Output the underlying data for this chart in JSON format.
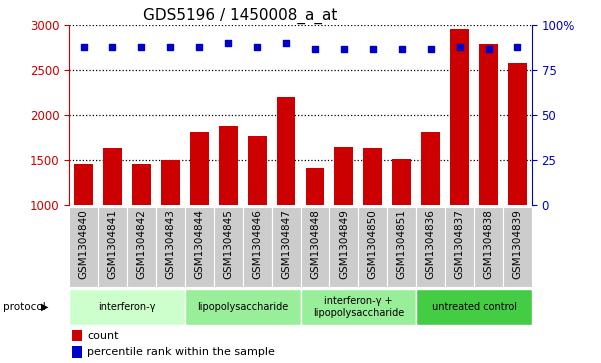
{
  "title": "GDS5196 / 1450008_a_at",
  "samples": [
    "GSM1304840",
    "GSM1304841",
    "GSM1304842",
    "GSM1304843",
    "GSM1304844",
    "GSM1304845",
    "GSM1304846",
    "GSM1304847",
    "GSM1304848",
    "GSM1304849",
    "GSM1304850",
    "GSM1304851",
    "GSM1304836",
    "GSM1304837",
    "GSM1304838",
    "GSM1304839"
  ],
  "counts": [
    1460,
    1630,
    1460,
    1500,
    1810,
    1880,
    1770,
    2200,
    1410,
    1650,
    1630,
    1510,
    1810,
    2960,
    2790,
    2580
  ],
  "percentile_ranks": [
    88,
    88,
    88,
    88,
    88,
    90,
    88,
    90,
    87,
    87,
    87,
    87,
    87,
    88,
    87,
    88
  ],
  "bar_color": "#cc0000",
  "dot_color": "#0000cc",
  "ylim_left": [
    1000,
    3000
  ],
  "ylim_right": [
    0,
    100
  ],
  "yticks_left": [
    1000,
    1500,
    2000,
    2500,
    3000
  ],
  "yticks_right": [
    0,
    25,
    50,
    75,
    100
  ],
  "ytick_right_labels": [
    "0",
    "25",
    "50",
    "75",
    "100%"
  ],
  "grid_values": [
    1500,
    2000,
    2500
  ],
  "protocols": [
    {
      "label": "interferon-γ",
      "start": 0,
      "end": 4,
      "color": "#ccffcc"
    },
    {
      "label": "lipopolysaccharide",
      "start": 4,
      "end": 8,
      "color": "#99ee99"
    },
    {
      "label": "interferon-γ +\nlipopolysaccharide",
      "start": 8,
      "end": 12,
      "color": "#99ee99"
    },
    {
      "label": "untreated control",
      "start": 12,
      "end": 16,
      "color": "#44cc44"
    }
  ],
  "legend_count_label": "count",
  "legend_percentile_label": "percentile rank within the sample",
  "protocol_label": "protocol",
  "title_fontsize": 11,
  "tick_fontsize": 8.5,
  "xtick_fontsize": 7.5,
  "label_fontsize": 8,
  "grey_box_color": "#cccccc",
  "white_color": "#ffffff"
}
